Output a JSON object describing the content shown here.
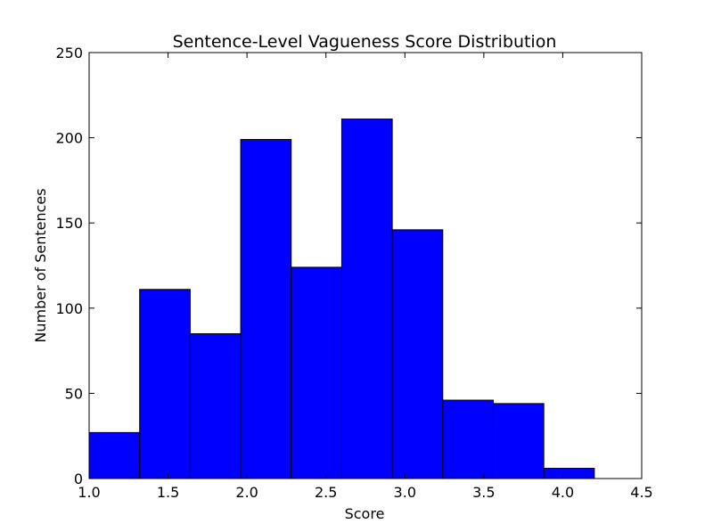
{
  "chart_data": {
    "type": "bar",
    "title": "Sentence-Level Vagueness Score Distribution",
    "xlabel": "Score",
    "ylabel": "Number of Sentences",
    "xlim": [
      1.0,
      4.5
    ],
    "ylim": [
      0,
      250
    ],
    "xticks": [
      "1.0",
      "1.5",
      "2.0",
      "2.5",
      "3.0",
      "3.5",
      "4.0",
      "4.5"
    ],
    "yticks": [
      "0",
      "50",
      "100",
      "150",
      "200",
      "250"
    ],
    "bins": [
      {
        "x0": 1.0,
        "x1": 1.32,
        "count": 27
      },
      {
        "x0": 1.32,
        "x1": 1.64,
        "count": 111
      },
      {
        "x0": 1.64,
        "x1": 1.96,
        "count": 85
      },
      {
        "x0": 1.96,
        "x1": 2.28,
        "count": 199
      },
      {
        "x0": 2.28,
        "x1": 2.6,
        "count": 124
      },
      {
        "x0": 2.6,
        "x1": 2.92,
        "count": 211
      },
      {
        "x0": 2.92,
        "x1": 3.24,
        "count": 146
      },
      {
        "x0": 3.24,
        "x1": 3.56,
        "count": 46
      },
      {
        "x0": 3.56,
        "x1": 3.88,
        "count": 44
      },
      {
        "x0": 3.88,
        "x1": 4.2,
        "count": 6
      }
    ],
    "bar_color": "#0000ff",
    "grid": false
  }
}
